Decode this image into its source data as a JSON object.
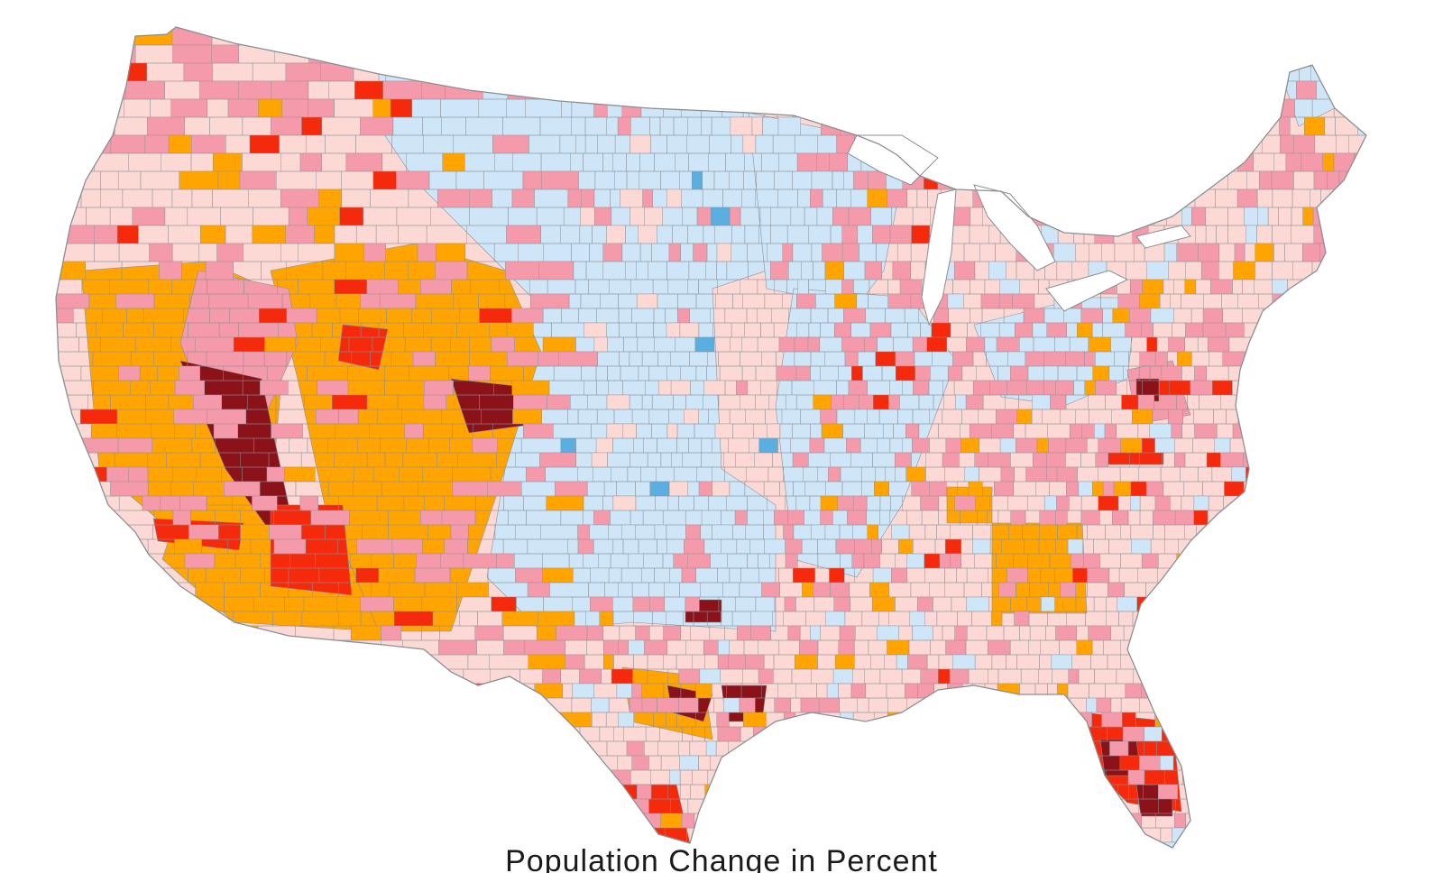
{
  "map": {
    "caption": "Population Change in Percent",
    "palette": {
      "strong_decline": "#5aaee0",
      "decline": "#cfe6f8",
      "slight_growth": "#fdd9d6",
      "moderate_growth": "#f59aab",
      "high_growth": "#ffa400",
      "very_high_growth": "#f52a0c",
      "extreme_growth": "#8b1219"
    },
    "border_color": "#8a8f94",
    "background_color": "#ffffff"
  }
}
